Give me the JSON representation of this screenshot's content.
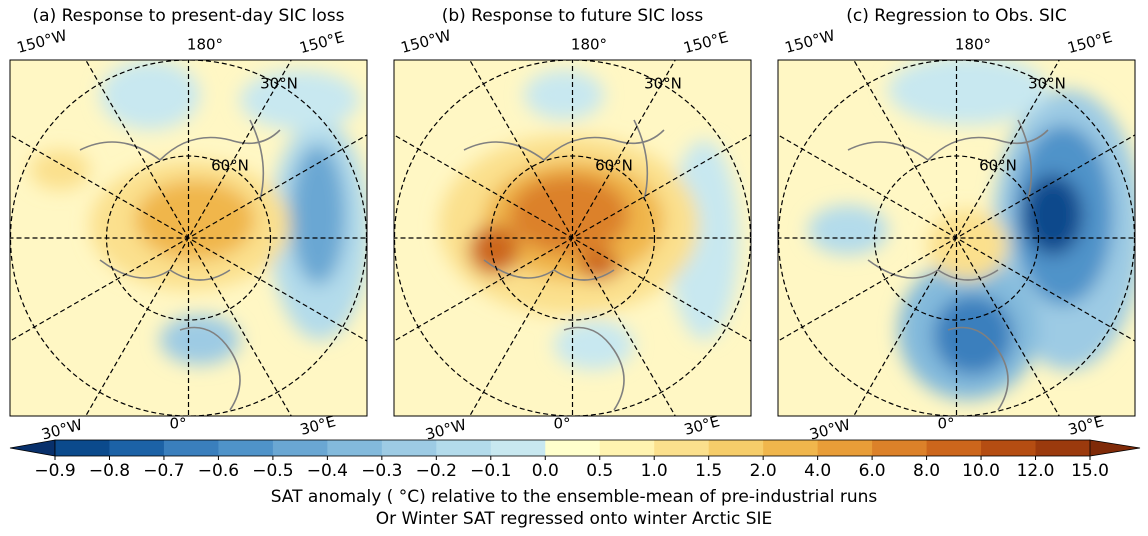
{
  "panels": [
    {
      "title": "(a) Response to present-day SIC loss"
    },
    {
      "title": "(b) Response to future SIC loss"
    },
    {
      "title": "(c) Regression to Obs. SIC"
    }
  ],
  "graticule_labels": [
    "150°W",
    "180°",
    "150°E",
    "30°N",
    "60°N",
    "30°W",
    "0°",
    "30°E"
  ],
  "colorbar": {
    "ticks": [
      {
        "value": -0.9,
        "label": "−0.9"
      },
      {
        "value": -0.8,
        "label": "−0.8"
      },
      {
        "value": -0.7,
        "label": "−0.7"
      },
      {
        "value": -0.6,
        "label": "−0.6"
      },
      {
        "value": -0.5,
        "label": "−0.5"
      },
      {
        "value": -0.4,
        "label": "−0.4"
      },
      {
        "value": -0.3,
        "label": "−0.3"
      },
      {
        "value": -0.2,
        "label": "−0.2"
      },
      {
        "value": -0.1,
        "label": "−0.1"
      },
      {
        "value": 0.0,
        "label": "0.0"
      },
      {
        "value": 0.5,
        "label": "0.5"
      },
      {
        "value": 1.0,
        "label": "1.0"
      },
      {
        "value": 1.5,
        "label": "1.5"
      },
      {
        "value": 2.0,
        "label": "2.0"
      },
      {
        "value": 4.0,
        "label": "4.0"
      },
      {
        "value": 6.0,
        "label": "6.0"
      },
      {
        "value": 8.0,
        "label": "8.0"
      },
      {
        "value": 10.0,
        "label": "10.0"
      },
      {
        "value": 12.0,
        "label": "12.0"
      },
      {
        "value": 15.0,
        "label": "15.0"
      }
    ],
    "colors": [
      "#08306b",
      "#0b4a8c",
      "#1c62a6",
      "#3a7fbd",
      "#4f93c9",
      "#6aa7d3",
      "#83badc",
      "#9dcbe4",
      "#b3dbeb",
      "#c8e8f0",
      "#ffffcc",
      "#fff3b0",
      "#fbe08d",
      "#f6cd6a",
      "#f0b64c",
      "#e89d38",
      "#dc8129",
      "#cc661c",
      "#b54d12",
      "#9b3a0d",
      "#7f2a08"
    ],
    "label_lines": [
      "SAT anomaly ( °C) relative to the ensemble-mean of pre-industrial runs",
      "Or Winter SAT regressed onto winter Arctic SIE"
    ]
  }
}
